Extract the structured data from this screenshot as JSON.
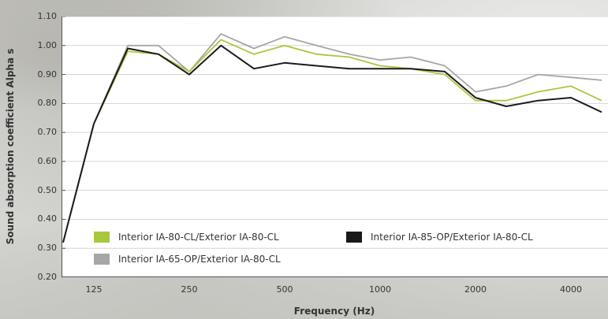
{
  "chart_data": {
    "type": "line",
    "title": "",
    "xlabel": "Frequency (Hz)",
    "ylabel": "Sound absorption coefficient Alpha s",
    "x": [
      100,
      125,
      160,
      200,
      250,
      315,
      400,
      500,
      630,
      800,
      1000,
      1250,
      1600,
      2000,
      2500,
      3150,
      4000,
      5000
    ],
    "x_tick_labels": [
      "125",
      "250",
      "500",
      "1000",
      "2000",
      "4000"
    ],
    "y_tick_labels": [
      "0.20",
      "0.30",
      "0.40",
      "0.50",
      "0.60",
      "0.70",
      "0.80",
      "0.90",
      "1.00",
      "1.10"
    ],
    "ylim": [
      0.2,
      1.1
    ],
    "grid": "horizontal",
    "legend_position": "bottom-left",
    "series": [
      {
        "name": "Interior IA-80-CL/Exterior IA-80-CL",
        "color": "#a8c83c",
        "values": [
          0.32,
          0.73,
          0.98,
          0.97,
          0.91,
          1.02,
          0.97,
          1.0,
          0.97,
          0.96,
          0.93,
          0.92,
          0.9,
          0.81,
          0.81,
          0.84,
          0.86,
          0.81
        ]
      },
      {
        "name": "Interior IA-85-OP/Exterior IA-80-CL",
        "color": "#1a1a1a",
        "values": [
          0.32,
          0.73,
          0.99,
          0.97,
          0.9,
          1.0,
          0.92,
          0.94,
          0.93,
          0.92,
          0.92,
          0.92,
          0.91,
          0.82,
          0.79,
          0.81,
          0.82,
          0.77
        ]
      },
      {
        "name": "Interior IA-65-OP/Exterior IA-80-CL",
        "color": "#a6a6a6",
        "values": [
          0.32,
          0.73,
          1.0,
          1.0,
          0.91,
          1.04,
          0.99,
          1.03,
          1.0,
          0.97,
          0.95,
          0.96,
          0.93,
          0.84,
          0.86,
          0.9,
          0.89,
          0.88
        ]
      }
    ]
  }
}
